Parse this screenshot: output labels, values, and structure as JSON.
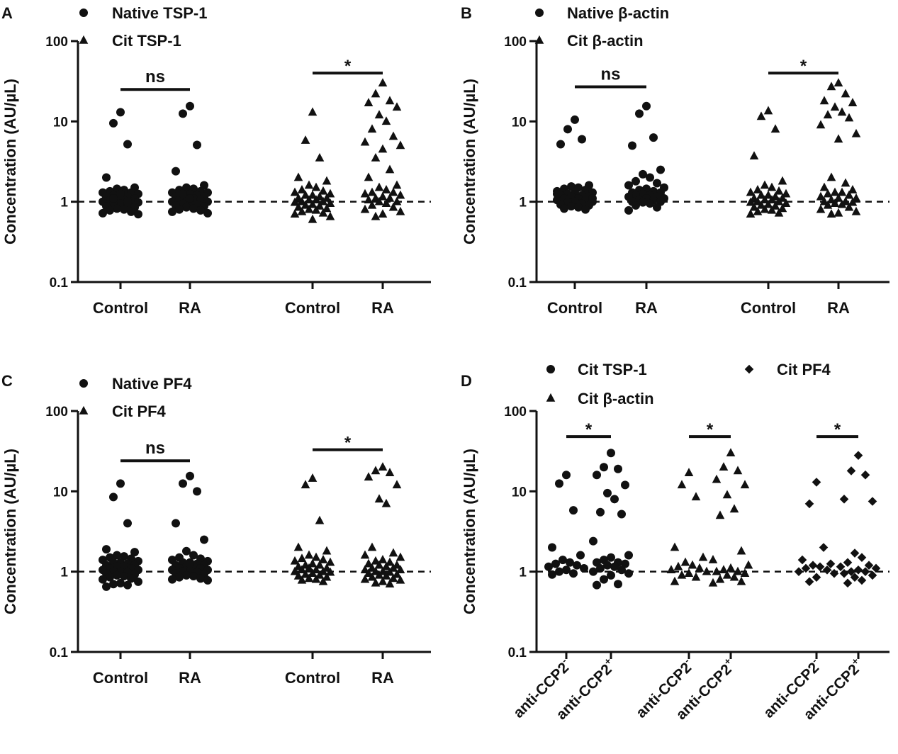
{
  "chart_data": [
    {
      "panel": "A",
      "type": "scatter",
      "yscale": "log",
      "ylim": [
        0.1,
        100
      ],
      "yticks": [
        "0.1",
        "1",
        "10",
        "100"
      ],
      "ylabel": "Concentration (AU/µL)",
      "reference_line": 1,
      "legend": [
        {
          "marker": "circle",
          "label": "Native TSP-1"
        },
        {
          "marker": "triangle",
          "label": "Cit TSP-1"
        }
      ],
      "categories": [
        "Control",
        "RA",
        "Control",
        "RA"
      ],
      "groups": [
        {
          "label": "Control",
          "marker": "circle",
          "values": [
            13,
            9.5,
            5.2,
            2.0,
            1.5,
            1.45,
            1.4,
            1.35,
            1.3,
            1.3,
            1.25,
            1.2,
            1.2,
            1.15,
            1.15,
            1.1,
            1.1,
            1.05,
            1.05,
            1.0,
            1.0,
            0.98,
            0.95,
            0.92,
            0.9,
            0.88,
            0.85,
            0.82,
            0.8,
            0.78,
            0.75,
            0.72,
            0.7,
            1.25,
            1.1,
            1.0
          ]
        },
        {
          "label": "RA",
          "marker": "circle",
          "values": [
            15.5,
            12.5,
            5.1,
            2.4,
            1.6,
            1.5,
            1.45,
            1.4,
            1.35,
            1.3,
            1.3,
            1.25,
            1.2,
            1.2,
            1.15,
            1.15,
            1.1,
            1.1,
            1.05,
            1.05,
            1.0,
            1.0,
            0.98,
            0.95,
            0.92,
            0.9,
            0.88,
            0.85,
            0.82,
            0.8,
            0.78,
            0.75,
            0.72,
            1.1,
            1.25
          ]
        },
        {
          "label": "Control",
          "marker": "triangle",
          "values": [
            13,
            5.8,
            3.5,
            2.0,
            1.8,
            1.6,
            1.5,
            1.4,
            1.35,
            1.3,
            1.25,
            1.2,
            1.2,
            1.15,
            1.1,
            1.1,
            1.05,
            1.05,
            1.0,
            1.0,
            0.98,
            0.95,
            0.92,
            0.9,
            0.88,
            0.85,
            0.82,
            0.8,
            0.78,
            0.75,
            0.72,
            0.7,
            0.65,
            0.6
          ]
        },
        {
          "label": "RA",
          "marker": "triangle",
          "values": [
            30,
            22,
            18,
            17,
            15,
            12,
            10,
            8,
            6.5,
            5.5,
            5,
            4.5,
            3.5,
            2.5,
            2,
            1.6,
            1.5,
            1.4,
            1.3,
            1.3,
            1.25,
            1.2,
            1.15,
            1.1,
            1.1,
            1.05,
            1.0,
            1.0,
            0.95,
            0.9,
            0.85,
            0.8,
            0.75,
            0.7,
            0.65
          ]
        }
      ],
      "significance": [
        {
          "between": [
            0,
            1
          ],
          "label": "ns",
          "y": 25
        },
        {
          "between": [
            2,
            3
          ],
          "label": "*",
          "y": 40
        }
      ]
    },
    {
      "panel": "B",
      "type": "scatter",
      "yscale": "log",
      "ylim": [
        0.1,
        100
      ],
      "yticks": [
        "0.1",
        "1",
        "10",
        "100"
      ],
      "ylabel": "Concentration (AU/µL)",
      "reference_line": 1,
      "legend": [
        {
          "marker": "circle",
          "label": "Native β-actin"
        },
        {
          "marker": "triangle",
          "label": "Cit β-actin"
        }
      ],
      "categories": [
        "Control",
        "RA",
        "Control",
        "RA"
      ],
      "groups": [
        {
          "label": "Control",
          "marker": "circle",
          "values": [
            10.5,
            8.0,
            6.0,
            5.2,
            1.6,
            1.55,
            1.5,
            1.45,
            1.4,
            1.35,
            1.3,
            1.3,
            1.25,
            1.2,
            1.2,
            1.15,
            1.15,
            1.1,
            1.1,
            1.05,
            1.05,
            1.0,
            1.0,
            0.98,
            0.95,
            0.92,
            0.9,
            0.88,
            0.85,
            0.82,
            0.8,
            1.25,
            1.1
          ]
        },
        {
          "label": "RA",
          "marker": "circle",
          "values": [
            15.5,
            12.5,
            6.3,
            5.0,
            2.5,
            2.2,
            2.0,
            1.8,
            1.7,
            1.6,
            1.5,
            1.45,
            1.4,
            1.35,
            1.3,
            1.3,
            1.25,
            1.2,
            1.2,
            1.15,
            1.15,
            1.1,
            1.1,
            1.05,
            1.05,
            1.0,
            1.0,
            0.98,
            0.95,
            0.9,
            0.85,
            0.78
          ]
        },
        {
          "label": "Control",
          "marker": "triangle",
          "values": [
            13.5,
            11.5,
            8.0,
            3.7,
            1.8,
            1.6,
            1.5,
            1.4,
            1.35,
            1.3,
            1.25,
            1.2,
            1.2,
            1.15,
            1.1,
            1.1,
            1.05,
            1.05,
            1.0,
            1.0,
            0.98,
            0.95,
            0.92,
            0.9,
            0.88,
            0.85,
            0.82,
            0.8,
            0.78,
            0.75,
            0.72,
            0.7
          ]
        },
        {
          "label": "RA",
          "marker": "triangle",
          "values": [
            30,
            27,
            22,
            18,
            17,
            15,
            13,
            12,
            11,
            9,
            7,
            6,
            2,
            1.7,
            1.5,
            1.4,
            1.3,
            1.3,
            1.25,
            1.2,
            1.15,
            1.1,
            1.1,
            1.05,
            1.0,
            1.0,
            0.98,
            0.95,
            0.92,
            0.9,
            0.85,
            0.8,
            0.75,
            0.72,
            0.7
          ]
        }
      ],
      "significance": [
        {
          "between": [
            0,
            1
          ],
          "label": "ns",
          "y": 27
        },
        {
          "between": [
            2,
            3
          ],
          "label": "*",
          "y": 40
        }
      ]
    },
    {
      "panel": "C",
      "type": "scatter",
      "yscale": "log",
      "ylim": [
        0.1,
        100
      ],
      "yticks": [
        "0.1",
        "1",
        "10",
        "100"
      ],
      "ylabel": "Concentration (AU/µL)",
      "reference_line": 1,
      "legend": [
        {
          "marker": "circle",
          "label": "Native PF4"
        },
        {
          "marker": "triangle",
          "label": "Cit PF4"
        }
      ],
      "categories": [
        "Control",
        "RA",
        "Control",
        "RA"
      ],
      "groups": [
        {
          "label": "Control",
          "marker": "circle",
          "values": [
            12.5,
            8.5,
            4.0,
            1.9,
            1.75,
            1.6,
            1.55,
            1.5,
            1.45,
            1.4,
            1.35,
            1.3,
            1.3,
            1.25,
            1.2,
            1.2,
            1.15,
            1.15,
            1.1,
            1.1,
            1.05,
            1.05,
            1.0,
            1.0,
            0.98,
            0.95,
            0.92,
            0.9,
            0.88,
            0.85,
            0.82,
            0.8,
            0.75,
            0.72,
            0.7,
            0.68,
            0.65
          ]
        },
        {
          "label": "RA",
          "marker": "circle",
          "values": [
            15.5,
            12.5,
            10,
            4.0,
            2.5,
            1.8,
            1.6,
            1.5,
            1.45,
            1.4,
            1.35,
            1.3,
            1.3,
            1.25,
            1.2,
            1.2,
            1.15,
            1.15,
            1.1,
            1.1,
            1.05,
            1.05,
            1.0,
            1.0,
            0.98,
            0.95,
            0.92,
            0.9,
            0.88,
            0.85,
            0.82,
            0.8,
            0.78,
            1.25
          ]
        },
        {
          "label": "Control",
          "marker": "triangle",
          "values": [
            14.5,
            12,
            4.3,
            2.0,
            1.8,
            1.6,
            1.5,
            1.45,
            1.4,
            1.35,
            1.3,
            1.25,
            1.2,
            1.2,
            1.15,
            1.1,
            1.1,
            1.05,
            1.05,
            1.0,
            1.0,
            0.98,
            0.95,
            0.92,
            0.9,
            0.88,
            0.85,
            0.82,
            0.8,
            0.78,
            0.75
          ]
        },
        {
          "label": "RA",
          "marker": "triangle",
          "values": [
            20,
            18,
            17,
            15,
            12,
            8,
            7,
            2,
            1.7,
            1.6,
            1.5,
            1.4,
            1.35,
            1.3,
            1.25,
            1.2,
            1.2,
            1.15,
            1.1,
            1.1,
            1.05,
            1.05,
            1.0,
            1.0,
            0.98,
            0.95,
            0.92,
            0.9,
            0.88,
            0.85,
            0.82,
            0.8,
            0.78,
            0.75,
            0.72,
            0.7
          ]
        }
      ],
      "significance": [
        {
          "between": [
            0,
            1
          ],
          "label": "ns",
          "y": 24
        },
        {
          "between": [
            2,
            3
          ],
          "label": "*",
          "y": 33
        }
      ]
    },
    {
      "panel": "D",
      "type": "scatter",
      "yscale": "log",
      "ylim": [
        0.1,
        100
      ],
      "yticks": [
        "0.1",
        "1",
        "10",
        "100"
      ],
      "ylabel": "Concentration (AU/µL)",
      "reference_line": 1,
      "legend": [
        {
          "marker": "circle",
          "label": "Cit TSP-1"
        },
        {
          "marker": "diamond",
          "label": "Cit PF4"
        },
        {
          "marker": "triangle",
          "label": "Cit β-actin"
        }
      ],
      "categories": [
        {
          "base": "anti-CCP2",
          "sup": "-"
        },
        {
          "base": "anti-CCP2",
          "sup": "+"
        },
        {
          "base": "anti-CCP2",
          "sup": "-"
        },
        {
          "base": "anti-CCP2",
          "sup": "+"
        },
        {
          "base": "anti-CCP2",
          "sup": "-"
        },
        {
          "base": "anti-CCP2",
          "sup": "+"
        }
      ],
      "groups": [
        {
          "label": "anti-CCP2-",
          "marker": "circle",
          "values": [
            16,
            12.5,
            5.8,
            2.0,
            1.6,
            1.4,
            1.3,
            1.25,
            1.2,
            1.15,
            1.1,
            1.05,
            1.0,
            0.95,
            0.92
          ]
        },
        {
          "label": "anti-CCP2+",
          "marker": "circle",
          "values": [
            30,
            20,
            19,
            16,
            12,
            9.5,
            8,
            5.5,
            5.2,
            2.4,
            1.6,
            1.5,
            1.4,
            1.3,
            1.3,
            1.25,
            1.2,
            1.15,
            1.1,
            1.05,
            1.0,
            0.95,
            0.9,
            0.8,
            0.7,
            0.68
          ]
        },
        {
          "label": "anti-CCP2-",
          "marker": "triangle",
          "values": [
            17,
            12,
            8.5,
            2.0,
            1.5,
            1.3,
            1.2,
            1.15,
            1.1,
            1.05,
            1.0,
            0.95,
            0.9,
            0.85,
            0.75
          ]
        },
        {
          "label": "anti-CCP2+",
          "marker": "triangle",
          "values": [
            30,
            20,
            18,
            14,
            12,
            9,
            6,
            5,
            1.8,
            1.4,
            1.2,
            1.1,
            1.05,
            1.0,
            1.0,
            0.95,
            0.9,
            0.85,
            0.8,
            0.75,
            0.72
          ]
        },
        {
          "label": "anti-CCP2-",
          "marker": "diamond",
          "values": [
            13,
            7,
            2.0,
            1.4,
            1.25,
            1.2,
            1.15,
            1.1,
            1.05,
            1.0,
            0.95,
            0.85,
            0.75
          ]
        },
        {
          "label": "anti-CCP2+",
          "marker": "diamond",
          "values": [
            28,
            18,
            16,
            8,
            7.5,
            1.7,
            1.5,
            1.3,
            1.2,
            1.15,
            1.1,
            1.05,
            1.0,
            1.0,
            0.95,
            0.9,
            0.85,
            0.78,
            0.72
          ]
        }
      ],
      "significance": [
        {
          "between": [
            0,
            1
          ],
          "label": "*",
          "y": 48
        },
        {
          "between": [
            2,
            3
          ],
          "label": "*",
          "y": 48
        },
        {
          "between": [
            4,
            5
          ],
          "label": "*",
          "y": 48
        }
      ]
    }
  ]
}
